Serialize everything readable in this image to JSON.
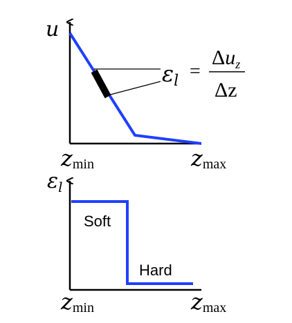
{
  "top_plot": {
    "y_axis_label": "u",
    "x_min_label": {
      "base": "z",
      "sub": "min"
    },
    "x_max_label": {
      "base": "z",
      "sub": "max"
    },
    "equation": {
      "lhs_base": "ε",
      "lhs_sub": "l",
      "equals": "=",
      "numerator_delta": "Δ",
      "numerator_base": "u",
      "numerator_sub": "z",
      "denominator": "Δz"
    },
    "line_color": "#1f3fff",
    "segment_color": "#000000"
  },
  "bottom_plot": {
    "y_axis_label": {
      "base": "ε",
      "sub": "l"
    },
    "x_min_label": {
      "base": "z",
      "sub": "min"
    },
    "x_max_label": {
      "base": "z",
      "sub": "max"
    },
    "soft_label": "Soft",
    "hard_label": "Hard",
    "line_color": "#1f3fff"
  }
}
